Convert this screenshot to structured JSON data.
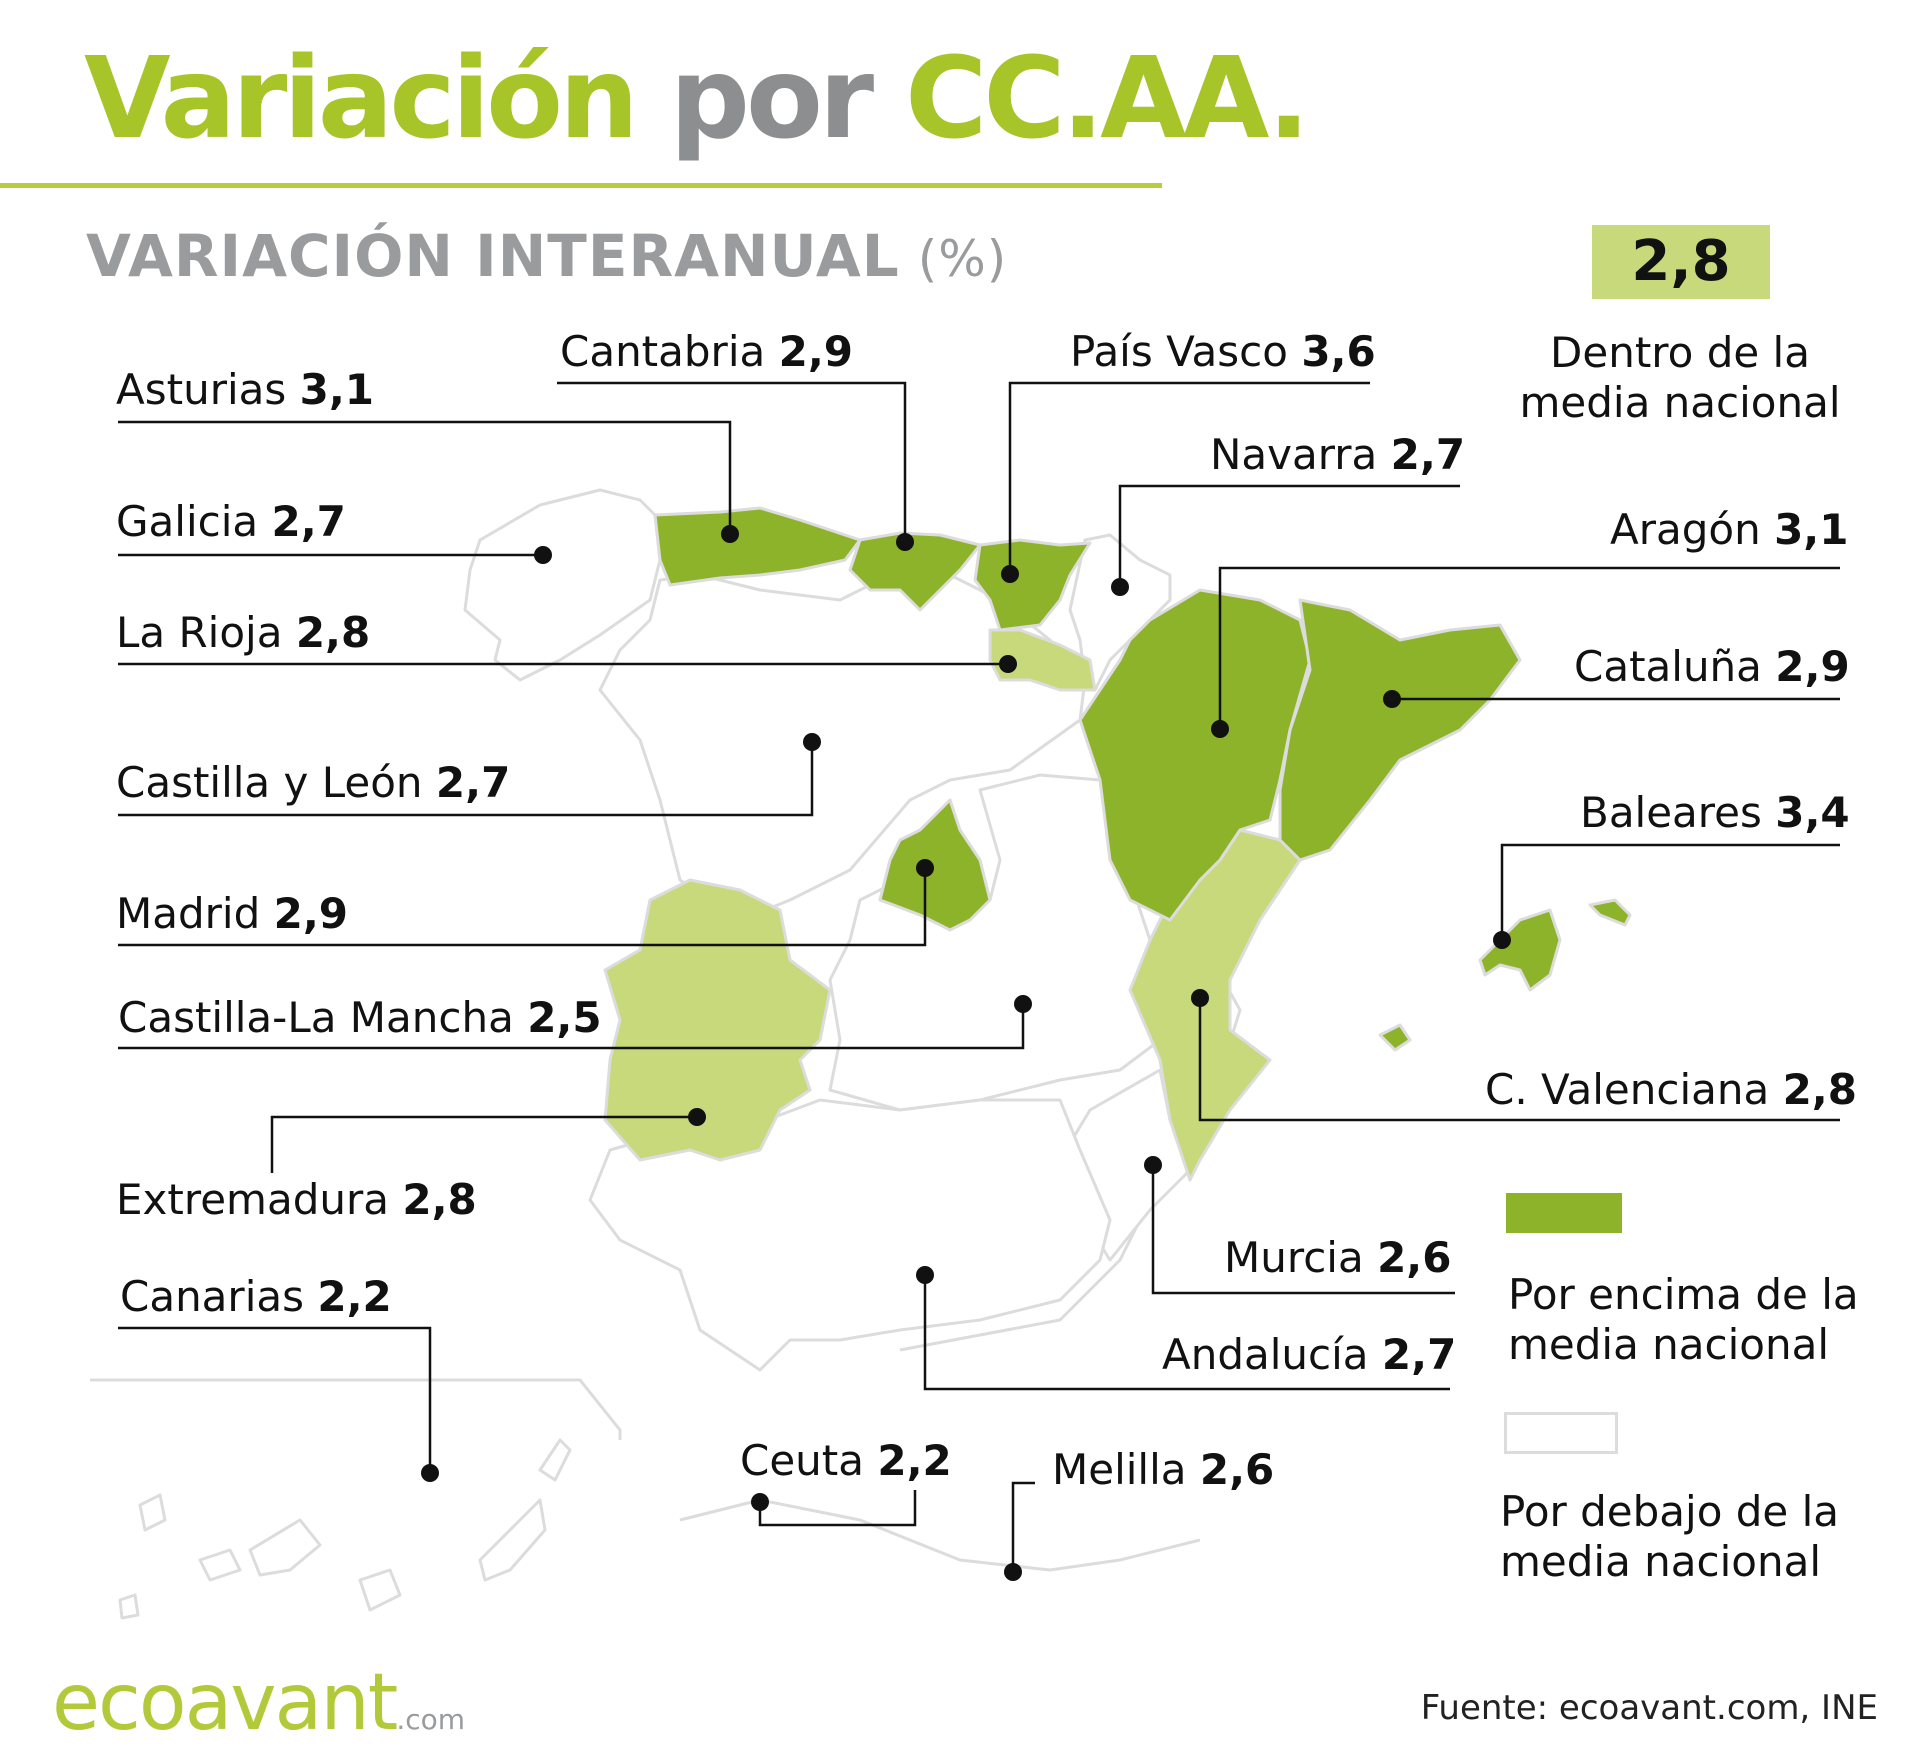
{
  "title": {
    "part1": "Variación",
    "part2": "por",
    "part3": "CC.AA."
  },
  "subtitle": {
    "main": "VARIACIÓN INTERANUAL",
    "unit": "(%)"
  },
  "national_average": {
    "value": "2,8",
    "label_line1": "Dentro de la",
    "label_line2": "media nacional"
  },
  "colors": {
    "above": "#8db32a",
    "within": "#c7d97a",
    "below": "#ffffff",
    "title_green": "#a7c428",
    "grey": "#8d8e90"
  },
  "regions": [
    {
      "name": "Asturias",
      "value": "3,1",
      "category": "above"
    },
    {
      "name": "Cantabria",
      "value": "2,9",
      "category": "above"
    },
    {
      "name": "País Vasco",
      "value": "3,6",
      "category": "above"
    },
    {
      "name": "Navarra",
      "value": "2,7",
      "category": "below"
    },
    {
      "name": "Galicia",
      "value": "2,7",
      "category": "below"
    },
    {
      "name": "Aragón",
      "value": "3,1",
      "category": "above"
    },
    {
      "name": "La Rioja",
      "value": "2,8",
      "category": "within"
    },
    {
      "name": "Cataluña",
      "value": "2,9",
      "category": "above"
    },
    {
      "name": "Castilla y León",
      "value": "2,7",
      "category": "below"
    },
    {
      "name": "Baleares",
      "value": "3,4",
      "category": "above"
    },
    {
      "name": "Madrid",
      "value": "2,9",
      "category": "above"
    },
    {
      "name": "Castilla-La Mancha",
      "value": "2,5",
      "category": "below"
    },
    {
      "name": "C. Valenciana",
      "value": "2,8",
      "category": "within"
    },
    {
      "name": "Extremadura",
      "value": "2,8",
      "category": "within"
    },
    {
      "name": "Murcia",
      "value": "2,6",
      "category": "below"
    },
    {
      "name": "Canarias",
      "value": "2,2",
      "category": "below"
    },
    {
      "name": "Andalucía",
      "value": "2,7",
      "category": "below"
    },
    {
      "name": "Ceuta",
      "value": "2,2",
      "category": "below"
    },
    {
      "name": "Melilla",
      "value": "2,6",
      "category": "below"
    }
  ],
  "legend": [
    {
      "line1": "Por encima de la",
      "line2": "media nacional",
      "color": "#8db32a"
    },
    {
      "line1": "Por debajo de la",
      "line2": "media nacional",
      "color": "#ffffff"
    }
  ],
  "logo": {
    "main": "ecoavant",
    "suffix": ".com"
  },
  "source": "Fuente: ecoavant.com, INE"
}
